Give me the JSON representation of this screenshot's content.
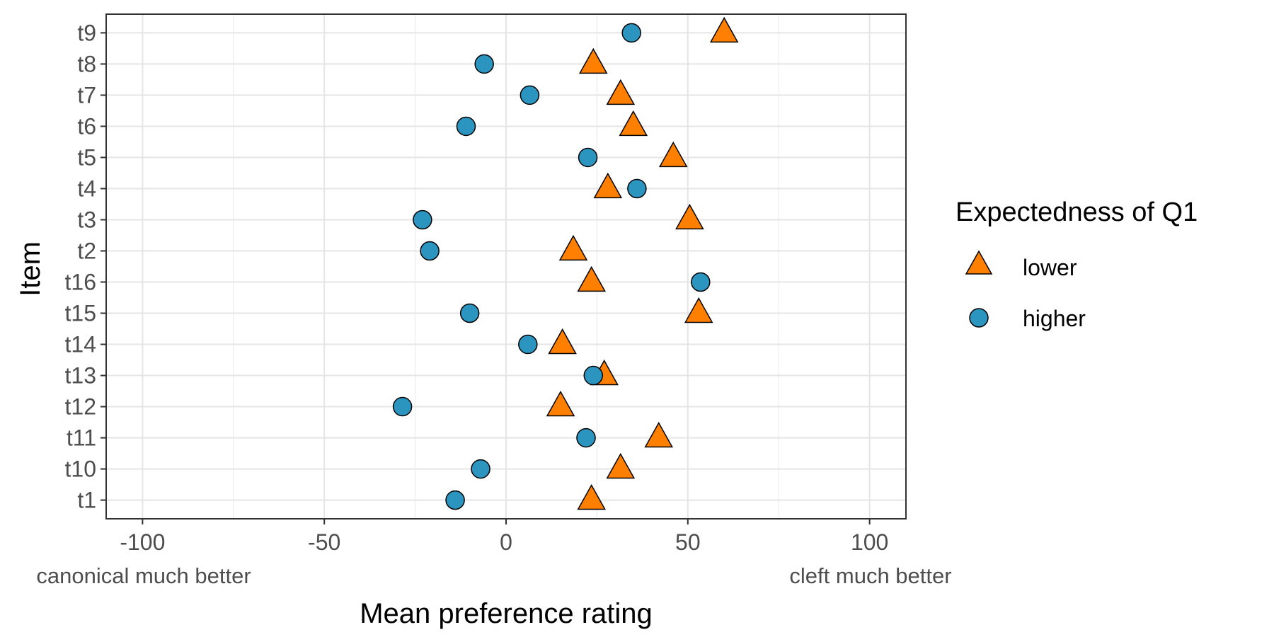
{
  "chart_data": {
    "type": "scatter",
    "xlabel": "Mean preference rating",
    "ylabel": "Item",
    "xlim": [
      -110,
      110
    ],
    "xticks": [
      -100,
      -50,
      0,
      50,
      100
    ],
    "xtick_labels": [
      "-100",
      "-50",
      "0",
      "50",
      "100"
    ],
    "x_end_labels": {
      "left": "canonical much better",
      "right": "cleft much better"
    },
    "categories": [
      "t1",
      "t10",
      "t11",
      "t12",
      "t13",
      "t14",
      "t15",
      "t16",
      "t2",
      "t3",
      "t4",
      "t5",
      "t6",
      "t7",
      "t8",
      "t9"
    ],
    "grid": true,
    "legend": {
      "title": "Expectedness of Q1",
      "placement": "right",
      "entries": [
        "lower",
        "higher"
      ]
    },
    "series": [
      {
        "name": "lower",
        "marker": "triangle",
        "color": "#FF7F00",
        "values": [
          23.5,
          31.5,
          42,
          15,
          27,
          15.5,
          53,
          23.5,
          18.5,
          50.5,
          28,
          46,
          35,
          31.5,
          24,
          60
        ]
      },
      {
        "name": "higher",
        "marker": "circle",
        "color": "#2B95C0",
        "values": [
          -14,
          -7,
          22,
          -28.5,
          24,
          6,
          -10,
          53.5,
          -21,
          -23,
          36,
          22.5,
          -11,
          6.5,
          -6,
          34.5
        ]
      }
    ]
  }
}
